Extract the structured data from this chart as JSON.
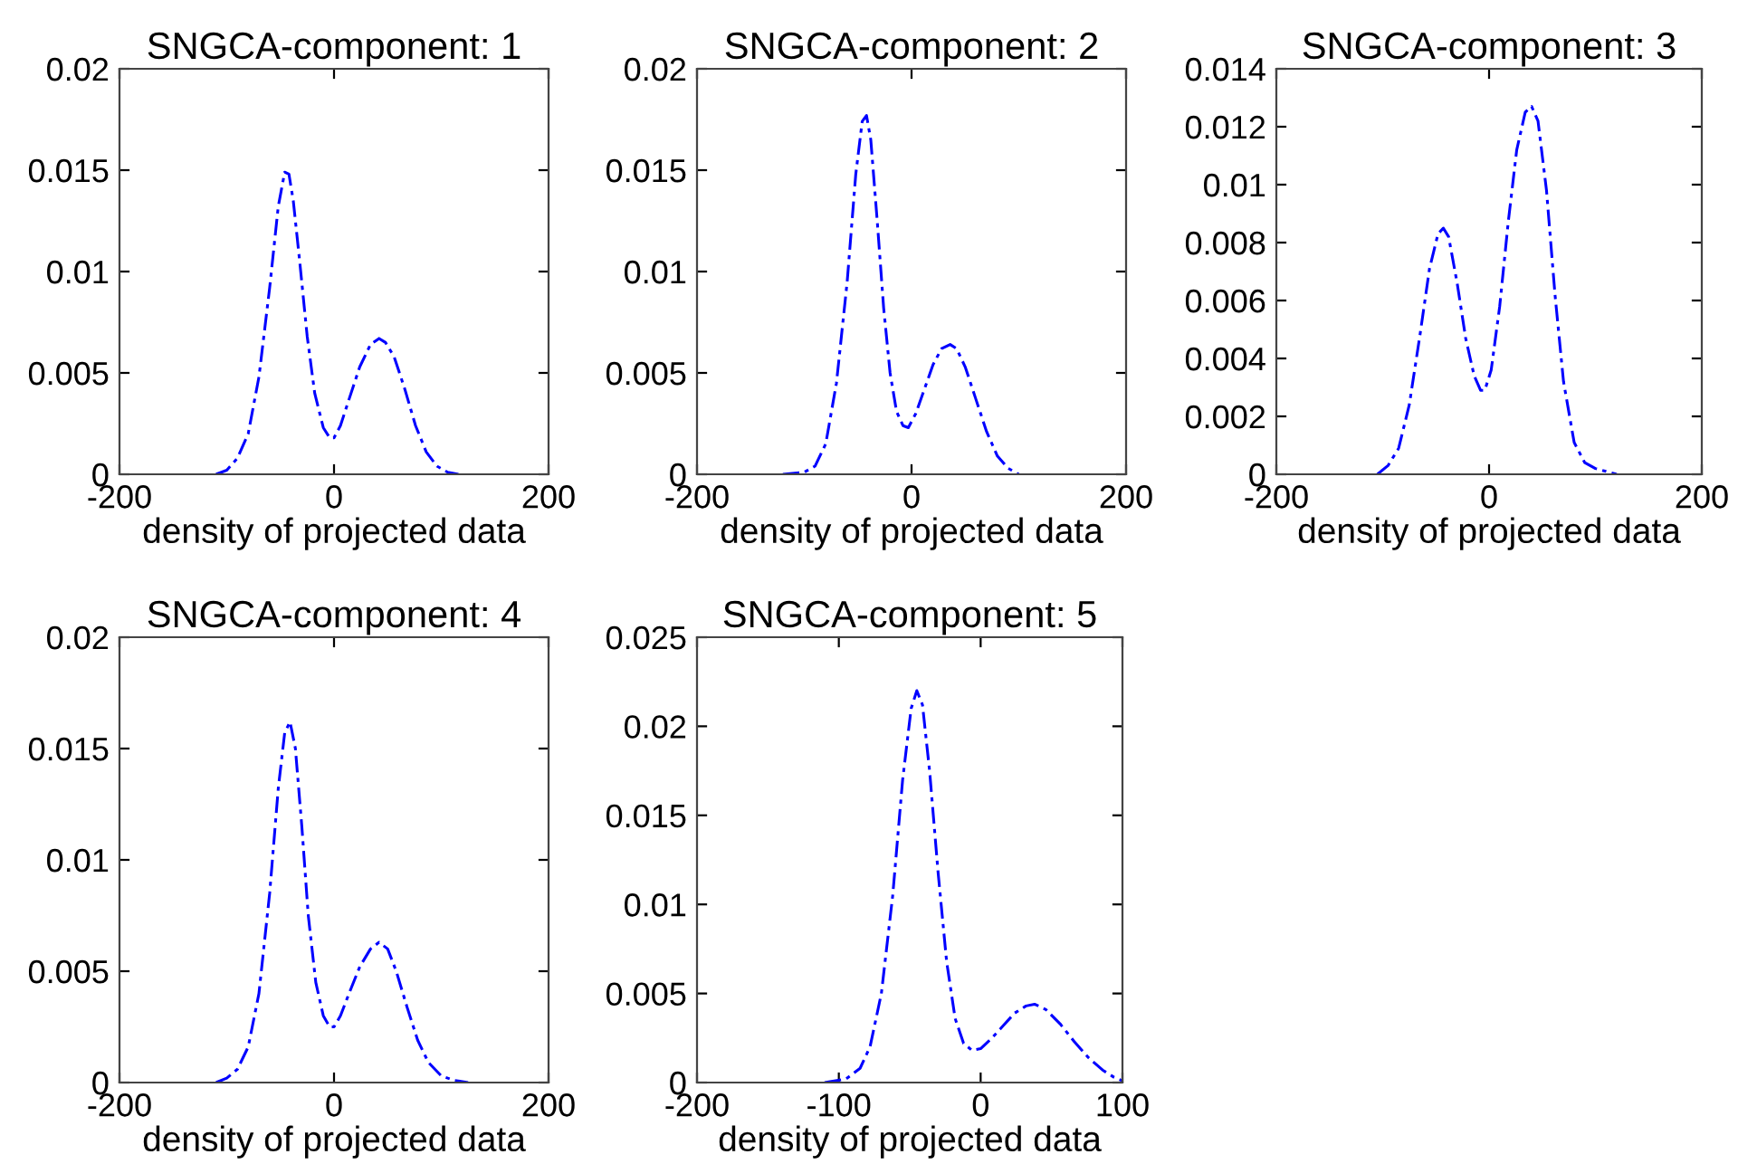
{
  "chart_data": [
    {
      "type": "line",
      "title": "SNGCA-component: 1",
      "xlabel": "density of projected data",
      "xlim": [
        -200,
        200
      ],
      "xticks": [
        -200,
        0,
        200
      ],
      "ylim": [
        0,
        0.02
      ],
      "yticks": [
        0,
        0.005,
        0.01,
        0.015,
        0.02
      ],
      "line_style": "dashed",
      "grid": false,
      "series": [
        {
          "color": "#0000ff",
          "x": [
            -110,
            -100,
            -90,
            -80,
            -70,
            -60,
            -52,
            -46,
            -42,
            -38,
            -32,
            -25,
            -18,
            -10,
            -4,
            0,
            6,
            14,
            24,
            34,
            42,
            48,
            56,
            66,
            76,
            86,
            96,
            106,
            116
          ],
          "values": [
            0,
            0.0002,
            0.0008,
            0.002,
            0.0048,
            0.0092,
            0.0132,
            0.0149,
            0.0148,
            0.0135,
            0.0105,
            0.0068,
            0.004,
            0.0023,
            0.0018,
            0.0018,
            0.0024,
            0.0037,
            0.0053,
            0.0064,
            0.0067,
            0.0065,
            0.0058,
            0.0042,
            0.0024,
            0.0011,
            0.0004,
            0.0001,
            0
          ]
        }
      ]
    },
    {
      "type": "line",
      "title": "SNGCA-component: 2",
      "xlabel": "density of projected data",
      "xlim": [
        -200,
        200
      ],
      "xticks": [
        -200,
        0,
        200
      ],
      "ylim": [
        0,
        0.02
      ],
      "yticks": [
        0,
        0.005,
        0.01,
        0.015,
        0.02
      ],
      "line_style": "dashed",
      "grid": false,
      "series": [
        {
          "color": "#0000ff",
          "x": [
            -120,
            -100,
            -90,
            -80,
            -70,
            -60,
            -52,
            -46,
            -42,
            -38,
            -32,
            -26,
            -20,
            -14,
            -8,
            -3,
            4,
            12,
            20,
            28,
            36,
            42,
            50,
            60,
            70,
            80,
            90,
            100
          ],
          "values": [
            0,
            0.0001,
            0.0004,
            0.0015,
            0.0045,
            0.0095,
            0.0148,
            0.0174,
            0.0177,
            0.0165,
            0.0125,
            0.0082,
            0.005,
            0.0031,
            0.0024,
            0.0023,
            0.003,
            0.0042,
            0.0054,
            0.0062,
            0.0064,
            0.0062,
            0.0053,
            0.0037,
            0.0021,
            0.0009,
            0.0003,
            0
          ]
        }
      ]
    },
    {
      "type": "line",
      "title": "SNGCA-component: 3",
      "xlabel": "density of projected data",
      "xlim": [
        -200,
        200
      ],
      "xticks": [
        -200,
        0,
        200
      ],
      "ylim": [
        0,
        0.014
      ],
      "yticks": [
        0,
        0.002,
        0.004,
        0.006,
        0.008,
        0.01,
        0.012,
        0.014
      ],
      "line_style": "dashed",
      "grid": false,
      "series": [
        {
          "color": "#0000ff",
          "x": [
            -105,
            -95,
            -85,
            -75,
            -65,
            -56,
            -48,
            -43,
            -38,
            -30,
            -22,
            -14,
            -8,
            -4,
            2,
            10,
            18,
            26,
            34,
            40,
            46,
            54,
            62,
            70,
            80,
            90,
            100,
            110,
            120
          ],
          "values": [
            0,
            0.0003,
            0.0009,
            0.0024,
            0.0048,
            0.0071,
            0.0083,
            0.0085,
            0.0082,
            0.0066,
            0.0047,
            0.0034,
            0.0029,
            0.0029,
            0.0036,
            0.0058,
            0.0087,
            0.0112,
            0.0125,
            0.0127,
            0.0122,
            0.0098,
            0.0062,
            0.0032,
            0.0011,
            0.0004,
            0.0002,
            0.0001,
            0
          ]
        }
      ]
    },
    {
      "type": "line",
      "title": "SNGCA-component: 4",
      "xlabel": "density of projected data",
      "xlim": [
        -200,
        200
      ],
      "xticks": [
        -200,
        0,
        200
      ],
      "ylim": [
        0,
        0.02
      ],
      "yticks": [
        0,
        0.005,
        0.01,
        0.015,
        0.02
      ],
      "line_style": "dashed",
      "grid": false,
      "series": [
        {
          "color": "#0000ff",
          "x": [
            -110,
            -100,
            -90,
            -80,
            -70,
            -60,
            -52,
            -46,
            -41,
            -36,
            -30,
            -24,
            -17,
            -10,
            -4,
            0,
            6,
            14,
            24,
            34,
            42,
            50,
            58,
            68,
            78,
            88,
            100,
            112,
            125
          ],
          "values": [
            0,
            0.0002,
            0.0006,
            0.0016,
            0.004,
            0.0085,
            0.0132,
            0.0157,
            0.0162,
            0.015,
            0.0115,
            0.0075,
            0.0045,
            0.003,
            0.0025,
            0.0025,
            0.003,
            0.004,
            0.0052,
            0.006,
            0.0063,
            0.006,
            0.005,
            0.0034,
            0.0019,
            0.0009,
            0.0003,
            0.0001,
            0
          ]
        }
      ]
    },
    {
      "type": "line",
      "title": "SNGCA-component: 5",
      "xlabel": "density of projected data",
      "xlim": [
        -200,
        100
      ],
      "xticks": [
        -200,
        -100,
        0,
        100
      ],
      "ylim": [
        0,
        0.025
      ],
      "yticks": [
        0,
        0.005,
        0.01,
        0.015,
        0.02,
        0.025
      ],
      "line_style": "dashed",
      "grid": false,
      "series": [
        {
          "color": "#0000ff",
          "x": [
            -110,
            -95,
            -85,
            -78,
            -70,
            -62,
            -55,
            -49,
            -45,
            -41,
            -36,
            -30,
            -24,
            -18,
            -12,
            -6,
            0,
            8,
            16,
            24,
            32,
            38,
            46,
            56,
            66,
            76,
            86,
            94,
            100
          ],
          "values": [
            0,
            0.0002,
            0.0008,
            0.002,
            0.005,
            0.0105,
            0.017,
            0.021,
            0.022,
            0.0212,
            0.0175,
            0.0118,
            0.0068,
            0.0036,
            0.0022,
            0.0018,
            0.0019,
            0.0025,
            0.0032,
            0.0039,
            0.0043,
            0.0044,
            0.0041,
            0.0033,
            0.0023,
            0.0014,
            0.0007,
            0.0003,
            0.0001
          ]
        }
      ]
    }
  ]
}
